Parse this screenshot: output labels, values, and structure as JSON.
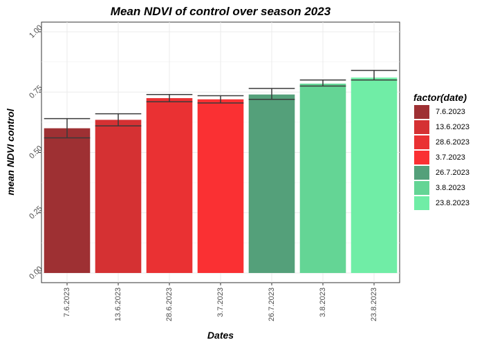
{
  "chart_data": {
    "type": "bar",
    "title": "Mean NDVI of control over season 2023",
    "xlabel": "Dates",
    "ylabel": "mean NDVI control",
    "categories": [
      "7.6.2023",
      "13.6.2023",
      "28.6.2023",
      "3.7.2023",
      "26.7.2023",
      "3.8.2023",
      "23.8.2023"
    ],
    "values": [
      0.6,
      0.635,
      0.725,
      0.72,
      0.74,
      0.785,
      0.81
    ],
    "error_low": [
      0.56,
      0.61,
      0.71,
      0.705,
      0.72,
      0.775,
      0.8
    ],
    "error_high": [
      0.64,
      0.66,
      0.74,
      0.735,
      0.765,
      0.8,
      0.84
    ],
    "colors": [
      "#9e3033",
      "#d53133",
      "#ea3133",
      "#fa3033",
      "#54a07a",
      "#64d595",
      "#70eda6"
    ],
    "ylim": [
      -0.04,
      1.04
    ],
    "yticks": [
      0.0,
      0.25,
      0.5,
      0.75,
      1.0
    ],
    "ytick_labels": [
      "0.00",
      "0.25",
      "0.50",
      "0.75",
      "1.00"
    ],
    "grid": true,
    "legend": {
      "title": "factor(date)",
      "position": "right",
      "entries": [
        "7.6.2023",
        "13.6.2023",
        "28.6.2023",
        "3.7.2023",
        "26.7.2023",
        "3.8.2023",
        "23.8.2023"
      ]
    }
  }
}
